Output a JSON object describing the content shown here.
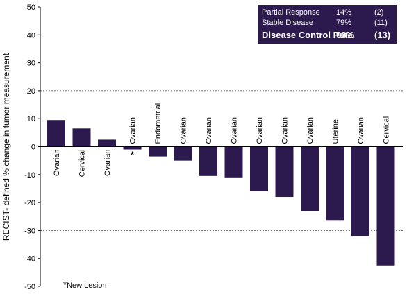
{
  "chart_data": {
    "type": "bar",
    "title": "",
    "xlabel": "",
    "ylabel": "RECIST- defined % change in tumor measurement",
    "ylim": [
      -50,
      50
    ],
    "yticks": [
      -50,
      -40,
      -30,
      -20,
      -10,
      0,
      10,
      20,
      30,
      40,
      50
    ],
    "reference_lines": [
      20,
      -30
    ],
    "bar_color": "#2c1a4f",
    "categories": [
      "Ovarian",
      "Cervical",
      "Ovarian",
      "Ovarian",
      "Endometrial",
      "Ovarian",
      "Ovarian",
      "Ovarian",
      "Ovarian",
      "Ovarian",
      "Ovarian",
      "Uterine",
      "Ovarian",
      "Cervical"
    ],
    "values": [
      9.5,
      6.5,
      2.5,
      -1,
      -3.5,
      -5,
      -10.5,
      -11,
      -16,
      -18,
      -23,
      -26.5,
      -32,
      -42.5
    ],
    "markers": [
      "",
      "",
      "",
      "*",
      "",
      "",
      "",
      "",
      "",
      "",
      "",
      "",
      "",
      ""
    ]
  },
  "legend": {
    "rows": [
      {
        "label": "Partial Response",
        "pct": "14%",
        "n": "(2)"
      },
      {
        "label": "Stable Disease",
        "pct": "79%",
        "n": "(11)"
      },
      {
        "label": "Disease Control Rate",
        "pct": "93%",
        "n": "(13)"
      }
    ]
  },
  "footnote": {
    "marker": "*",
    "text": "New Lesion"
  }
}
